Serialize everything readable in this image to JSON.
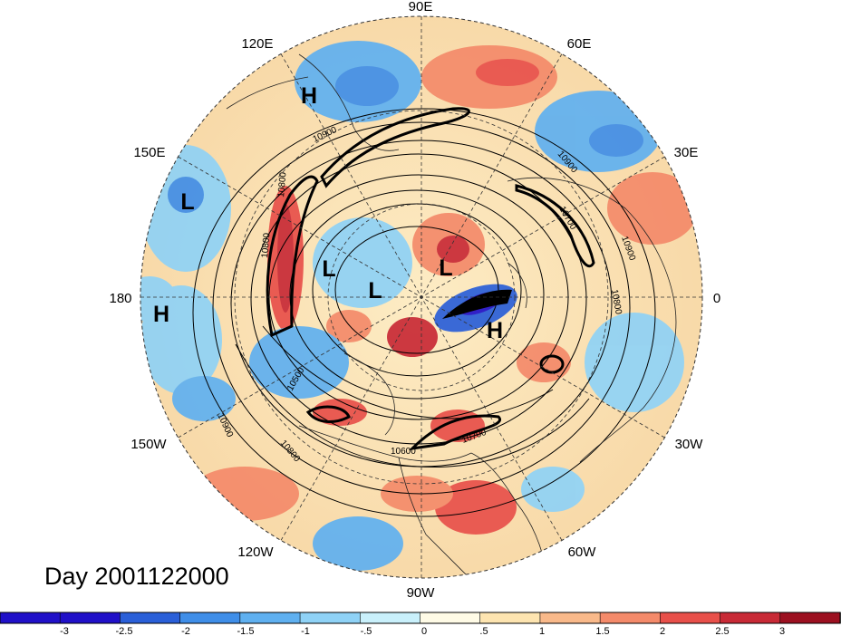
{
  "title": "Day 2001122000",
  "map": {
    "projection": "north-polar-stereographic",
    "longitude_labels": {
      "e90": "90E",
      "e60": "60E",
      "e30": "30E",
      "e120": "120E",
      "e150": "150E",
      "lon0": "0",
      "lon180": "180",
      "w30": "30W",
      "w60": "60W",
      "w90": "90W",
      "w120": "120W",
      "w150": "150W"
    },
    "pressure_centers": {
      "h1": "H",
      "h2": "H",
      "h3": "H",
      "l1": "L",
      "l2": "L",
      "l3": "L",
      "l4": "L"
    },
    "contour_labels": {
      "c1": "10900",
      "c2": "10800",
      "c3": "10700",
      "c4": "10800",
      "c5": "10900",
      "c6": "10500",
      "c7": "10600",
      "c8": "10700",
      "c9": "10800",
      "c10": "10900",
      "c11": "10800",
      "c12": "10900"
    }
  },
  "colorbar": {
    "labels": {
      "t1": "-3",
      "t2": "-2.5",
      "t3": "-2",
      "t4": "-1.5",
      "t5": "-1",
      "t6": "-.5",
      "t7": "0",
      "t8": ".5",
      "t9": "1",
      "t10": "1.5",
      "t11": "2",
      "t12": "2.5",
      "t13": "3"
    },
    "colors": [
      "#2010c8",
      "#2a5fd8",
      "#3f8ee8",
      "#5fb0f0",
      "#8fd2f6",
      "#c9f0fb",
      "#fffbe6",
      "#fde4b0",
      "#f9b98a",
      "#f48a6a",
      "#e8504a",
      "#c82a36",
      "#9c1020"
    ]
  }
}
